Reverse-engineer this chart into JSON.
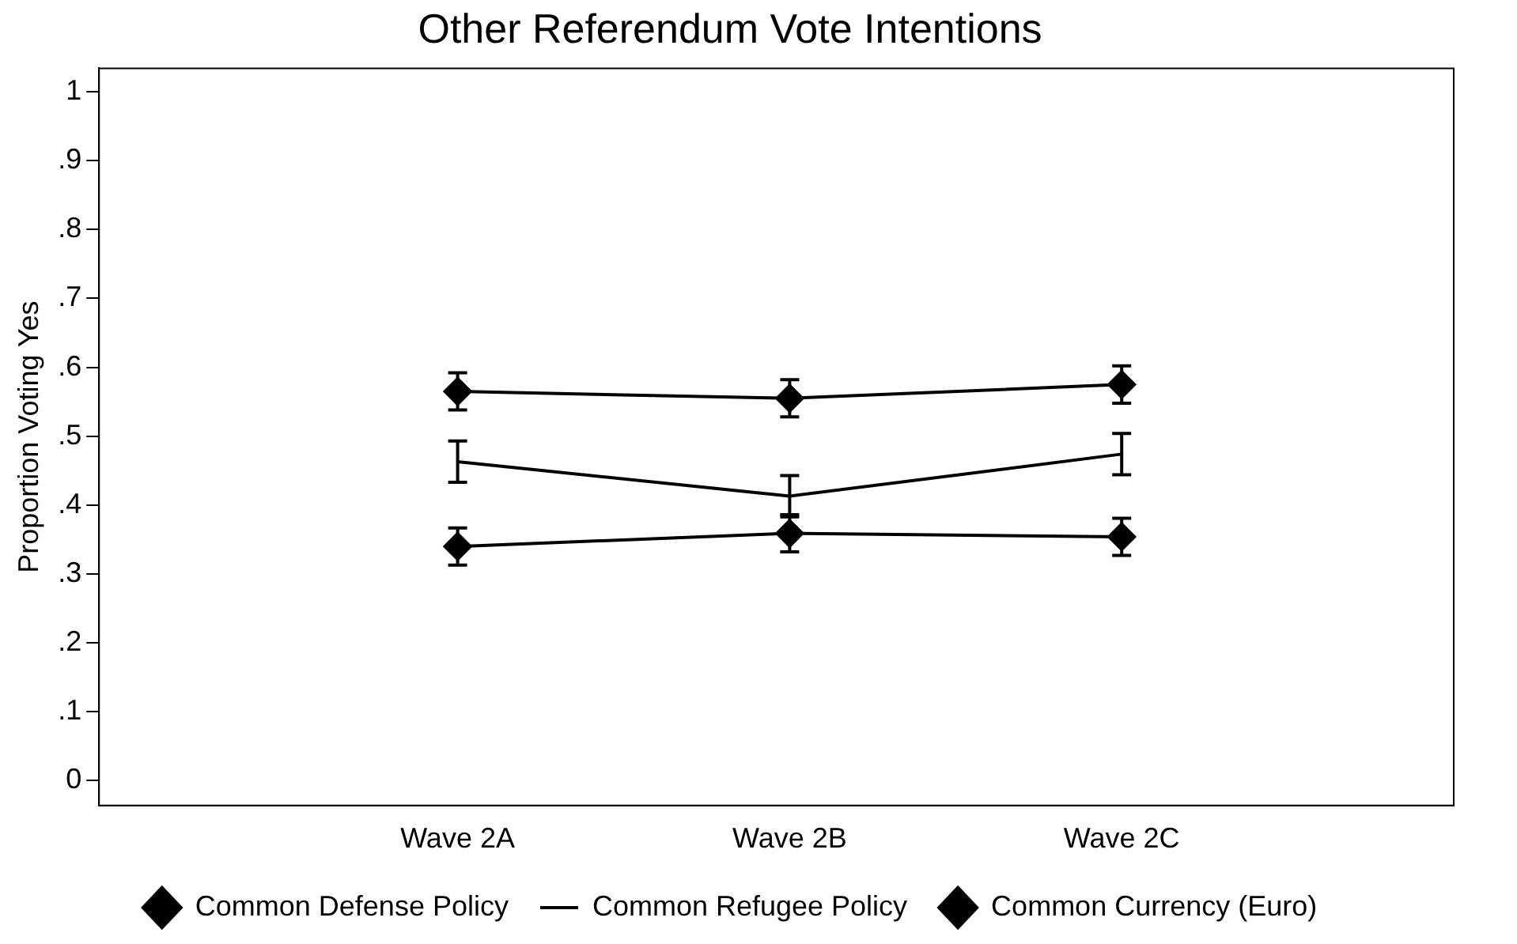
{
  "chart_data": {
    "type": "line",
    "title": "Other Referendum Vote Intentions",
    "ylabel": "Proportion Voting Yes",
    "categories": [
      "Wave 2A",
      "Wave 2B",
      "Wave 2C"
    ],
    "series": [
      {
        "name": "Common Defense Policy",
        "color": "#000000",
        "marker": "diamond",
        "values": [
          0.565,
          0.555,
          0.575
        ],
        "errors": [
          0.027,
          0.027,
          0.027
        ]
      },
      {
        "name": "Common Refugee Policy",
        "color": "#000000",
        "marker": "none",
        "values": [
          0.463,
          0.413,
          0.474
        ],
        "errors": [
          0.03,
          0.03,
          0.03
        ]
      },
      {
        "name": "Common Currency (Euro)",
        "color": "#000000",
        "marker": "diamond",
        "values": [
          0.34,
          0.359,
          0.354
        ],
        "errors": [
          0.027,
          0.027,
          0.027
        ]
      }
    ],
    "ylim": [
      -0.036,
      1.034
    ],
    "yticks": [
      0,
      {
        "value": 0.1,
        "label": ".1"
      },
      {
        "value": 0.2,
        "label": ".2"
      },
      {
        "value": 0.3,
        "label": ".3"
      },
      {
        "value": 0.4,
        "label": ".4"
      },
      {
        "value": 0.5,
        "label": ".5"
      },
      {
        "value": 0.6,
        "label": ".6"
      },
      {
        "value": 0.7,
        "label": ".7"
      },
      {
        "value": 0.8,
        "label": ".8"
      },
      {
        "value": 0.9,
        "label": ".9"
      },
      1
    ],
    "grid": false,
    "legend": "bottom",
    "line_style": "solid"
  }
}
